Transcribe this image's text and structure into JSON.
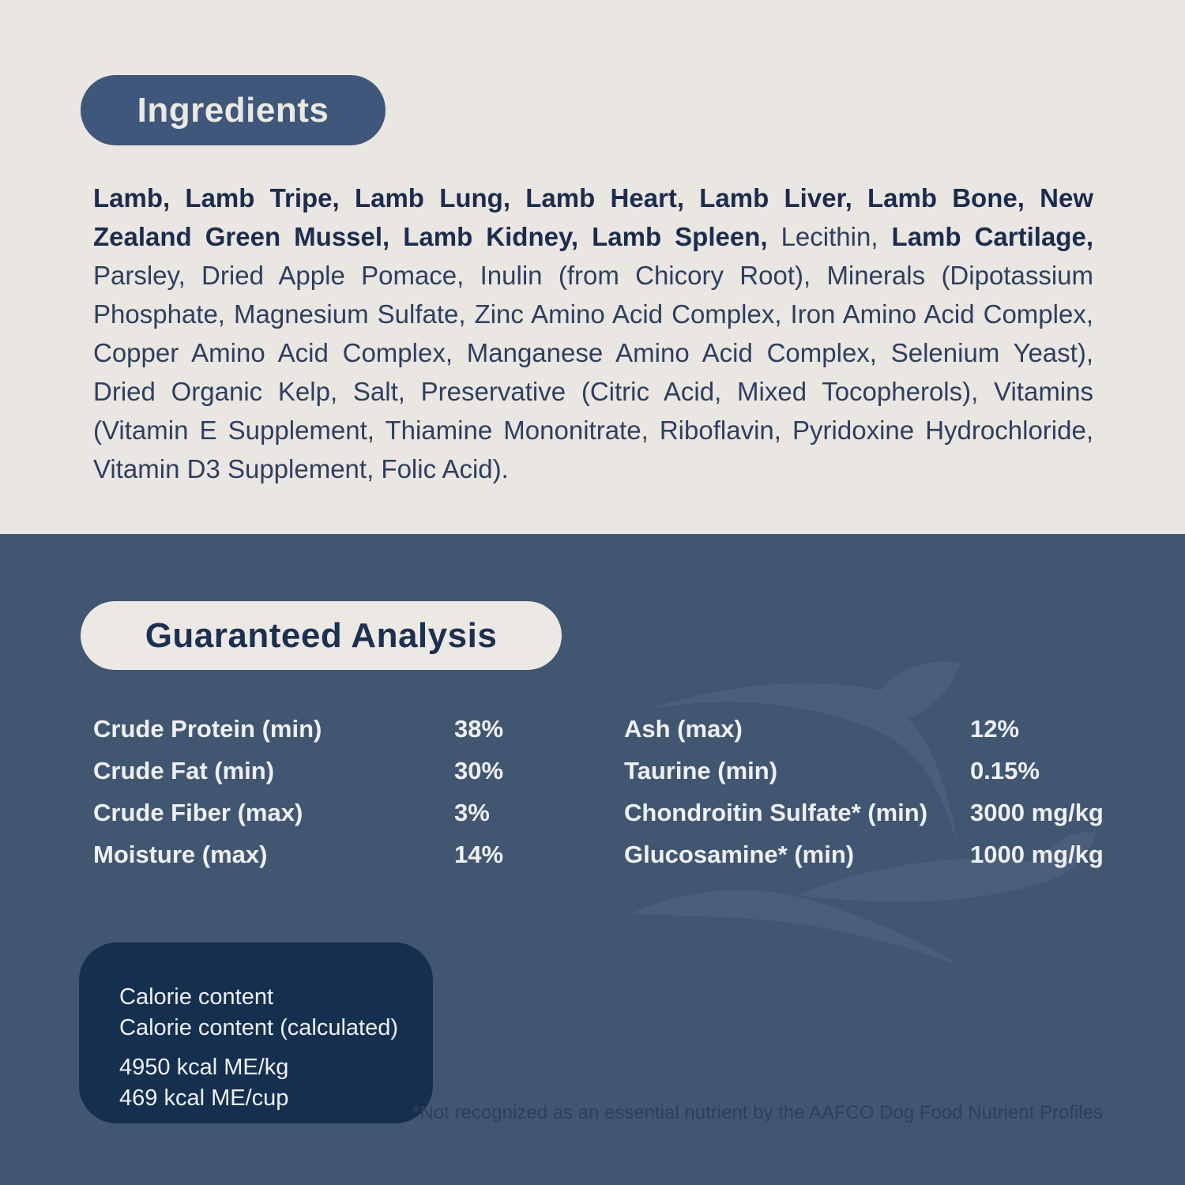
{
  "colors": {
    "light_bg": "#eae6e2",
    "dark_bg": "#415671",
    "pill_dark_bg": "#3f577a",
    "pill_light_bg": "#ece9e4",
    "navy_text": "#1c3051",
    "body_bold_text": "#1b2c4e",
    "body_text": "#2e3f5e",
    "white_text": "#eef0f3",
    "calorie_box_bg": "#15304f",
    "footnote_text": "#2e405e",
    "watermark": "#4b5f7c"
  },
  "ingredients": {
    "title": "Ingredients",
    "segments": [
      {
        "bold": true,
        "text": "Lamb, Lamb Tripe, Lamb Lung, Lamb Heart, Lamb Liver, Lamb Bone, New Zealand Green Mussel, Lamb Kidney, Lamb Spleen, "
      },
      {
        "bold": false,
        "text": "Lecithin, "
      },
      {
        "bold": true,
        "text": "Lamb Cartilage, "
      },
      {
        "bold": false,
        "text": "Parsley, Dried Apple Pomace, Inulin (from Chicory Root), Minerals (Dipotassium Phosphate, Magnesium Sulfate, Zinc Amino Acid Complex, Iron Amino Acid Complex, Copper Amino Acid Complex, Manganese Amino Acid Complex, Selenium Yeast), Dried Organic Kelp, Salt, Preservative (Citric Acid, Mixed Tocopherols), Vitamins (Vitamin E Supplement, Thiamine Mononitrate, Riboflavin, Pyridoxine Hydrochloride, Vitamin D3 Supplement, Folic Acid)."
      }
    ]
  },
  "guaranteed_analysis": {
    "title": "Guaranteed Analysis",
    "left_rows": [
      {
        "label": "Crude Protein (min)",
        "value": "38%"
      },
      {
        "label": "Crude Fat (min)",
        "value": "30%"
      },
      {
        "label": "Crude Fiber (max)",
        "value": "3%"
      },
      {
        "label": "Moisture (max)",
        "value": "14%"
      }
    ],
    "right_rows": [
      {
        "label": "Ash (max)",
        "value": "12%"
      },
      {
        "label": "Taurine (min)",
        "value": "0.15%"
      },
      {
        "label": "Chondroitin Sulfate* (min)",
        "value": "3000 mg/kg"
      },
      {
        "label": "Glucosamine* (min)",
        "value": "1000 mg/kg"
      }
    ]
  },
  "calorie_content": {
    "labels": [
      "Calorie content",
      "Calorie content (calculated)"
    ],
    "values": [
      "4950 kcal ME/kg",
      "469 kcal ME/cup"
    ]
  },
  "footnote": "*Not recognized as an essential nutrient by the AAFCO Dog Food Nutrient Profiles"
}
